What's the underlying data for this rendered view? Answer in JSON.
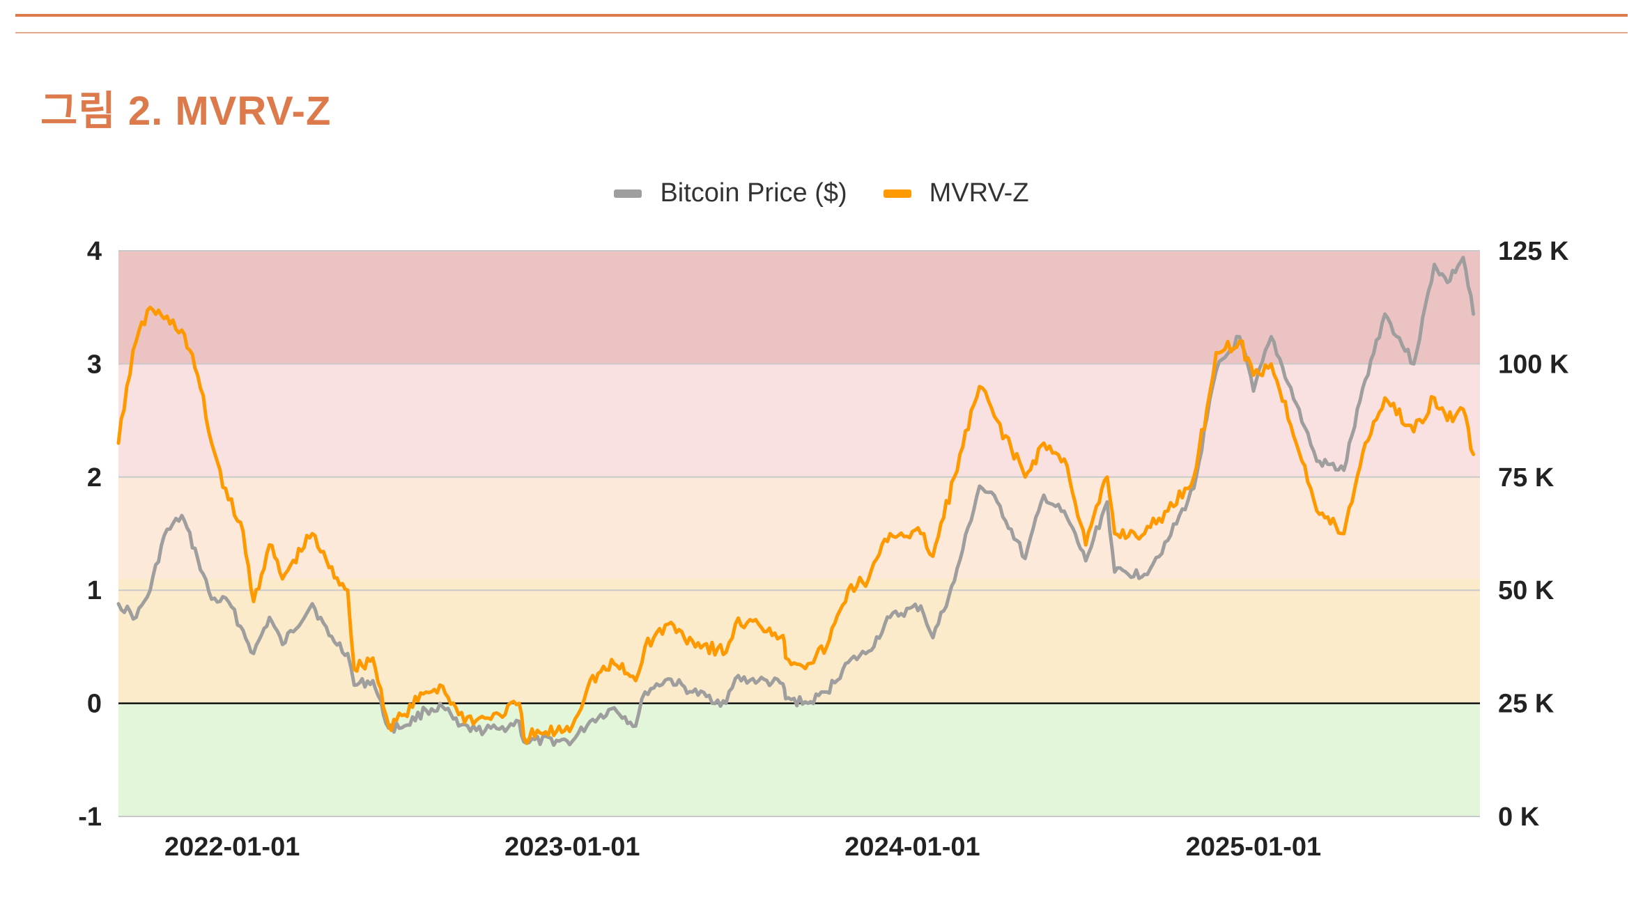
{
  "header": {
    "figure_title": "그림 2. MVRV-Z"
  },
  "legend": {
    "items": [
      {
        "label": "Bitcoin Price ($)",
        "color": "#9e9e9e"
      },
      {
        "label": "MVRV-Z",
        "color": "#ff9900"
      }
    ],
    "placement": "top-center"
  },
  "chart_data": {
    "type": "line",
    "x_axis": {
      "type": "date",
      "range": [
        "2021-09-01",
        "2025-09-01"
      ],
      "tick_labels": [
        "2022-01-01",
        "2023-01-01",
        "2024-01-01",
        "2025-01-01"
      ]
    },
    "y_left": {
      "range": [
        -1,
        4
      ],
      "tick_labels": [
        "4",
        "3",
        "2",
        "1",
        "0",
        "-1"
      ],
      "tick_values": [
        4,
        3,
        2,
        1,
        0,
        -1
      ]
    },
    "y_right": {
      "range": [
        0,
        125000
      ],
      "tick_labels": [
        "125 K",
        "100 K",
        "75 K",
        "50 K",
        "25 K",
        "0 K"
      ],
      "tick_values": [
        125000,
        100000,
        75000,
        50000,
        25000,
        0
      ]
    },
    "bands": [
      {
        "from": 3,
        "to": 4,
        "color": "#ebc3c3"
      },
      {
        "from": 2,
        "to": 3,
        "color": "#fae1e1"
      },
      {
        "from": 1.1,
        "to": 2,
        "color": "#fce9da"
      },
      {
        "from": 0,
        "to": 1.1,
        "color": "#fcebca"
      },
      {
        "from": -1,
        "to": 0,
        "color": "#e3f6d9"
      }
    ],
    "grid": true,
    "series": [
      {
        "name": "Bitcoin Price ($)",
        "axis": "right",
        "color": "#9e9e9e",
        "points": [
          [
            "2021-09-01",
            47000
          ],
          [
            "2021-09-20",
            44000
          ],
          [
            "2021-10-05",
            50000
          ],
          [
            "2021-10-20",
            62000
          ],
          [
            "2021-11-08",
            66500
          ],
          [
            "2021-11-25",
            57000
          ],
          [
            "2021-12-10",
            48000
          ],
          [
            "2021-12-28",
            47500
          ],
          [
            "2022-01-10",
            42000
          ],
          [
            "2022-01-24",
            36000
          ],
          [
            "2022-02-10",
            44000
          ],
          [
            "2022-02-24",
            38000
          ],
          [
            "2022-03-28",
            47000
          ],
          [
            "2022-04-15",
            40000
          ],
          [
            "2022-05-05",
            36000
          ],
          [
            "2022-05-12",
            29000
          ],
          [
            "2022-06-01",
            30000
          ],
          [
            "2022-06-18",
            19500
          ],
          [
            "2022-07-05",
            20000
          ],
          [
            "2022-07-28",
            23500
          ],
          [
            "2022-08-15",
            24200
          ],
          [
            "2022-09-01",
            20000
          ],
          [
            "2022-09-20",
            19000
          ],
          [
            "2022-10-15",
            19300
          ],
          [
            "2022-11-05",
            21000
          ],
          [
            "2022-11-10",
            16500
          ],
          [
            "2022-12-15",
            16800
          ],
          [
            "2023-01-01",
            16600
          ],
          [
            "2023-01-20",
            21000
          ],
          [
            "2023-02-15",
            24000
          ],
          [
            "2023-03-10",
            20000
          ],
          [
            "2023-03-20",
            27500
          ],
          [
            "2023-04-14",
            30400
          ],
          [
            "2023-05-10",
            27500
          ],
          [
            "2023-06-15",
            25000
          ],
          [
            "2023-06-25",
            30500
          ],
          [
            "2023-07-20",
            30000
          ],
          [
            "2023-08-15",
            29300
          ],
          [
            "2023-08-18",
            26000
          ],
          [
            "2023-09-11",
            25000
          ],
          [
            "2023-10-01",
            27500
          ],
          [
            "2023-10-24",
            34000
          ],
          [
            "2023-11-15",
            36500
          ],
          [
            "2023-12-08",
            44000
          ],
          [
            "2024-01-10",
            46500
          ],
          [
            "2024-01-23",
            39500
          ],
          [
            "2024-02-15",
            52000
          ],
          [
            "2024-03-13",
            73000
          ],
          [
            "2024-04-01",
            69500
          ],
          [
            "2024-05-01",
            57000
          ],
          [
            "2024-05-21",
            71000
          ],
          [
            "2024-06-15",
            66000
          ],
          [
            "2024-07-05",
            56500
          ],
          [
            "2024-07-28",
            69500
          ],
          [
            "2024-08-05",
            54000
          ],
          [
            "2024-09-06",
            53500
          ],
          [
            "2024-10-01",
            61000
          ],
          [
            "2024-10-29",
            72500
          ],
          [
            "2024-11-12",
            88000
          ],
          [
            "2024-11-22",
            98500
          ],
          [
            "2024-12-17",
            106000
          ],
          [
            "2025-01-01",
            94000
          ],
          [
            "2025-01-20",
            106000
          ],
          [
            "2025-02-25",
            86000
          ],
          [
            "2025-03-10",
            78500
          ],
          [
            "2025-04-08",
            76500
          ],
          [
            "2025-05-01",
            96500
          ],
          [
            "2025-05-22",
            111000
          ],
          [
            "2025-06-22",
            100000
          ],
          [
            "2025-07-14",
            122000
          ],
          [
            "2025-07-28",
            118000
          ],
          [
            "2025-08-14",
            123500
          ],
          [
            "2025-08-25",
            111000
          ]
        ]
      },
      {
        "name": "MVRV-Z",
        "axis": "left",
        "color": "#ff9900",
        "points": [
          [
            "2021-09-01",
            2.3
          ],
          [
            "2021-09-10",
            2.8
          ],
          [
            "2021-09-20",
            3.2
          ],
          [
            "2021-10-05",
            3.5
          ],
          [
            "2021-10-20",
            3.4
          ],
          [
            "2021-11-08",
            3.3
          ],
          [
            "2021-11-25",
            2.9
          ],
          [
            "2021-12-10",
            2.3
          ],
          [
            "2021-12-28",
            1.8
          ],
          [
            "2022-01-10",
            1.6
          ],
          [
            "2022-01-24",
            0.9
          ],
          [
            "2022-02-10",
            1.4
          ],
          [
            "2022-02-24",
            1.1
          ],
          [
            "2022-03-28",
            1.5
          ],
          [
            "2022-04-15",
            1.2
          ],
          [
            "2022-05-05",
            1.0
          ],
          [
            "2022-05-12",
            0.3
          ],
          [
            "2022-06-01",
            0.4
          ],
          [
            "2022-06-18",
            -0.2
          ],
          [
            "2022-07-05",
            -0.1
          ],
          [
            "2022-07-28",
            0.1
          ],
          [
            "2022-08-15",
            0.15
          ],
          [
            "2022-09-01",
            -0.1
          ],
          [
            "2022-09-20",
            -0.15
          ],
          [
            "2022-10-15",
            -0.1
          ],
          [
            "2022-11-05",
            0.0
          ],
          [
            "2022-11-10",
            -0.3
          ],
          [
            "2022-12-15",
            -0.25
          ],
          [
            "2023-01-01",
            -0.2
          ],
          [
            "2023-01-20",
            0.2
          ],
          [
            "2023-02-15",
            0.35
          ],
          [
            "2023-03-10",
            0.2
          ],
          [
            "2023-03-20",
            0.5
          ],
          [
            "2023-04-14",
            0.7
          ],
          [
            "2023-05-10",
            0.55
          ],
          [
            "2023-06-15",
            0.45
          ],
          [
            "2023-06-25",
            0.7
          ],
          [
            "2023-07-20",
            0.7
          ],
          [
            "2023-08-15",
            0.6
          ],
          [
            "2023-08-18",
            0.4
          ],
          [
            "2023-09-11",
            0.35
          ],
          [
            "2023-10-01",
            0.5
          ],
          [
            "2023-10-24",
            1.0
          ],
          [
            "2023-11-15",
            1.1
          ],
          [
            "2023-12-08",
            1.5
          ],
          [
            "2024-01-10",
            1.5
          ],
          [
            "2024-01-23",
            1.3
          ],
          [
            "2024-02-15",
            2.0
          ],
          [
            "2024-03-13",
            2.8
          ],
          [
            "2024-04-01",
            2.5
          ],
          [
            "2024-05-01",
            2.0
          ],
          [
            "2024-05-21",
            2.3
          ],
          [
            "2024-06-15",
            2.1
          ],
          [
            "2024-07-05",
            1.4
          ],
          [
            "2024-07-28",
            2.0
          ],
          [
            "2024-08-05",
            1.5
          ],
          [
            "2024-09-06",
            1.5
          ],
          [
            "2024-10-01",
            1.7
          ],
          [
            "2024-10-29",
            2.0
          ],
          [
            "2024-11-12",
            2.6
          ],
          [
            "2024-11-22",
            3.1
          ],
          [
            "2024-12-17",
            3.2
          ],
          [
            "2025-01-01",
            2.9
          ],
          [
            "2025-01-20",
            3.0
          ],
          [
            "2025-02-25",
            2.1
          ],
          [
            "2025-03-10",
            1.7
          ],
          [
            "2025-04-08",
            1.5
          ],
          [
            "2025-05-01",
            2.3
          ],
          [
            "2025-05-22",
            2.7
          ],
          [
            "2025-06-22",
            2.4
          ],
          [
            "2025-07-14",
            2.7
          ],
          [
            "2025-07-28",
            2.5
          ],
          [
            "2025-08-14",
            2.6
          ],
          [
            "2025-08-25",
            2.2
          ]
        ]
      }
    ]
  }
}
